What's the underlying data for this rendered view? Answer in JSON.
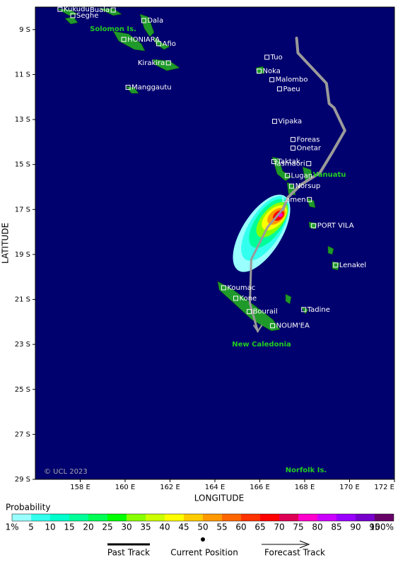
{
  "map": {
    "lon_range": [
      156,
      172
    ],
    "lat_range": [
      8,
      29
    ],
    "lon_ticks": [
      {
        "value": 158,
        "label": "158 E"
      },
      {
        "value": 160,
        "label": "160 E"
      },
      {
        "value": 162,
        "label": "162 E"
      },
      {
        "value": 164,
        "label": "164 E"
      },
      {
        "value": 166,
        "label": "166 E"
      },
      {
        "value": 168,
        "label": "168 E"
      },
      {
        "value": 170,
        "label": "170 E"
      },
      {
        "value": 172,
        "label": "172 E"
      }
    ],
    "lat_ticks": [
      {
        "value": 9,
        "label": "9 S"
      },
      {
        "value": 11,
        "label": "11 S"
      },
      {
        "value": 13,
        "label": "13 S"
      },
      {
        "value": 15,
        "label": "15 S"
      },
      {
        "value": 17,
        "label": "17 S"
      },
      {
        "value": 19,
        "label": "19 S"
      },
      {
        "value": 21,
        "label": "21 S"
      },
      {
        "value": 23,
        "label": "23 S"
      },
      {
        "value": 25,
        "label": "25 S"
      },
      {
        "value": 27,
        "label": "27 S"
      },
      {
        "value": 29,
        "label": "29 S"
      }
    ],
    "x_label": "LONGITUDE",
    "y_label": "LATITUDE",
    "copyright": "© UCL 2023",
    "regions": [
      "Solomon Is.",
      "Vanuatu",
      "New Caledonia",
      "Norfolk Is."
    ],
    "places": [
      {
        "name": "Kukudu",
        "lon": 157.1,
        "lat": 8.1,
        "label_side": "right"
      },
      {
        "name": "Buala",
        "lon": 159.47,
        "lat": 8.13,
        "label_side": "left"
      },
      {
        "name": "Seghe",
        "lon": 157.67,
        "lat": 8.38,
        "label_side": "right"
      },
      {
        "name": "Dala",
        "lon": 160.83,
        "lat": 8.6,
        "label_side": "right"
      },
      {
        "name": "HONIARA",
        "lon": 159.94,
        "lat": 9.44,
        "label_side": "right"
      },
      {
        "name": "Afio",
        "lon": 161.5,
        "lat": 9.63,
        "label_side": "right"
      },
      {
        "name": "Kirakira",
        "lon": 161.93,
        "lat": 10.48,
        "label_side": "left"
      },
      {
        "name": "Manggautu",
        "lon": 160.13,
        "lat": 11.57,
        "label_side": "right"
      },
      {
        "name": "Tuo",
        "lon": 166.32,
        "lat": 10.23,
        "label_side": "right"
      },
      {
        "name": "Noka",
        "lon": 165.97,
        "lat": 10.85,
        "label_side": "right"
      },
      {
        "name": "Malombo",
        "lon": 166.54,
        "lat": 11.23,
        "label_side": "right"
      },
      {
        "name": "Paeu",
        "lon": 166.88,
        "lat": 11.64,
        "label_side": "right"
      },
      {
        "name": "Vipaka",
        "lon": 166.66,
        "lat": 13.08,
        "label_side": "right"
      },
      {
        "name": "Foreas",
        "lon": 167.48,
        "lat": 13.89,
        "label_side": "right"
      },
      {
        "name": "Onetar",
        "lon": 167.48,
        "lat": 14.27,
        "label_side": "right"
      },
      {
        "name": "Taktak",
        "lon": 166.63,
        "lat": 14.87,
        "label_side": "right"
      },
      {
        "name": "Tasmaori",
        "lon": 168.18,
        "lat": 14.96,
        "label_side": "left"
      },
      {
        "name": "Lugan",
        "lon": 167.23,
        "lat": 15.49,
        "label_side": "right"
      },
      {
        "name": "Norsup",
        "lon": 167.42,
        "lat": 15.96,
        "label_side": "right"
      },
      {
        "name": "Lamen",
        "lon": 168.21,
        "lat": 16.56,
        "label_side": "left"
      },
      {
        "name": "PORT VILA",
        "lon": 168.4,
        "lat": 17.72,
        "label_side": "right"
      },
      {
        "name": "Lenakel",
        "lon": 169.38,
        "lat": 19.47,
        "label_side": "right"
      },
      {
        "name": "Koumac",
        "lon": 164.39,
        "lat": 20.48,
        "label_side": "right"
      },
      {
        "name": "Kone",
        "lon": 164.93,
        "lat": 20.95,
        "label_side": "right"
      },
      {
        "name": "Bourail",
        "lon": 165.53,
        "lat": 21.54,
        "label_side": "right"
      },
      {
        "name": "Tadine",
        "lon": 167.96,
        "lat": 21.45,
        "label_side": "right"
      },
      {
        "name": "NOUM'EA",
        "lon": 166.57,
        "lat": 22.17,
        "label_side": "right"
      }
    ],
    "past_track": {
      "lon": [
        167.64,
        167.7,
        168.97,
        169.09,
        169.31,
        169.79,
        169.25,
        168.68,
        167.83,
        167.26,
        167.04
      ],
      "lat": [
        9.38,
        10.04,
        11.39,
        12.29,
        12.48,
        13.49,
        14.43,
        15.37,
        15.9,
        16.46,
        16.97
      ]
    },
    "current_position": {
      "lon": 167.04,
      "lat": 16.97
    },
    "forecast_track": {
      "lon": [
        167.04,
        166.35,
        165.62,
        165.56,
        165.91
      ],
      "lat": [
        16.97,
        17.78,
        19.22,
        21.17,
        22.42
      ]
    }
  },
  "colorbar": {
    "title": "Probability",
    "labels": [
      "1%",
      "5",
      "10",
      "15",
      "20",
      "25",
      "30",
      "35",
      "40",
      "45",
      "50",
      "55",
      "60",
      "65",
      "70",
      "75",
      "80",
      "85",
      "90",
      "95",
      "100%"
    ],
    "colors": [
      "#99ffff",
      "#33ffee",
      "#00ffcc",
      "#00ff99",
      "#00ff55",
      "#00ff00",
      "#88ff00",
      "#ccff00",
      "#ffff00",
      "#ffcc00",
      "#ff9900",
      "#ff6600",
      "#ff3300",
      "#ff0000",
      "#dd0055",
      "#ff00cc",
      "#cc00ff",
      "#9900ff",
      "#7700cc",
      "#660066"
    ]
  },
  "legend": [
    "Past Track",
    "Current Position",
    "Forecast Track"
  ]
}
